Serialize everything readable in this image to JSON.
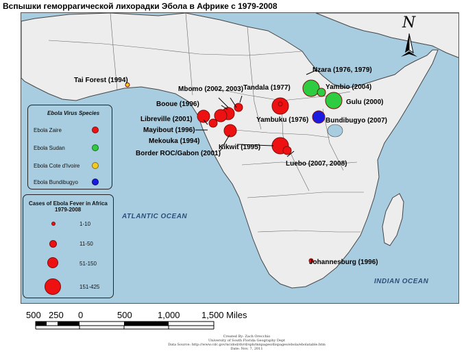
{
  "title": "Вспышки геморрагической лихорадки Эбола в Африке с 1979-2008",
  "colors": {
    "ocean": "#a9cde0",
    "land": "#ededed",
    "zaire": "#ee1111",
    "sudan": "#2ecc40",
    "cote_divoire": "#f2cc22",
    "bundibugyo": "#1a1ae0"
  },
  "oceans": {
    "atlantic": "ATLANTIC OCEAN",
    "indian": "INDIAN OCEAN"
  },
  "north_arrow": "N",
  "outbreaks": [
    {
      "label": "Tai Forest (1994)",
      "species": "cote_divoire",
      "cases": 1
    },
    {
      "label": "Mbomo (2002, 2003)",
      "species": "zaire",
      "cases": 35
    },
    {
      "label": "Booue (1996)",
      "species": "zaire",
      "cases": 60
    },
    {
      "label": "Libreville (2001)",
      "species": "zaire",
      "cases": 65
    },
    {
      "label": "Mayibout (1996)",
      "species": "zaire",
      "cases": 37
    },
    {
      "label": "Mekouka (1994)",
      "species": "zaire",
      "cases": 52
    },
    {
      "label": "Border ROC/Gabon (2001)",
      "species": "zaire",
      "cases": 59
    },
    {
      "label": "Tandala (1977)",
      "species": "zaire",
      "cases": 1
    },
    {
      "label": "Yambuku (1976)",
      "species": "zaire",
      "cases": 318
    },
    {
      "label": "Kikwit (1995)",
      "species": "zaire",
      "cases": 315
    },
    {
      "label": "Luebo (2007, 2008)",
      "species": "zaire",
      "cases": 32
    },
    {
      "label": "Nzara (1976, 1979)",
      "species": "sudan",
      "cases": 284
    },
    {
      "label": "Yambio (2004)",
      "species": "sudan",
      "cases": 17
    },
    {
      "label": "Gulu (2000)",
      "species": "sudan",
      "cases": 425
    },
    {
      "label": "Bundibugyo (2007)",
      "species": "bundibugyo",
      "cases": 131
    },
    {
      "label": "Johannesburg (1996)",
      "species": "zaire",
      "cases": 2
    }
  ],
  "species_legend": {
    "title": "Ebola Virus Species",
    "items": [
      {
        "label": "Ebola Zaire",
        "color": "#ee1111"
      },
      {
        "label": "Ebola Sudan",
        "color": "#2ecc40"
      },
      {
        "label": "Ebola Cote d'Ivoire",
        "color": "#f2cc22"
      },
      {
        "label": "Ebola Bundibugyo",
        "color": "#1a1ae0"
      }
    ]
  },
  "cases_legend": {
    "title": "Cases of Ebola Fever in Africa",
    "subtitle": "1979-2008",
    "classes": [
      "1-10",
      "11-50",
      "51-150",
      "151-425"
    ]
  },
  "scale_bar": {
    "labels": [
      "500",
      "250",
      "0",
      "500",
      "1,000",
      "1,500 Miles"
    ]
  },
  "credits": [
    "Created By: Zach Orecchio",
    "University of South Florida Geography Dept",
    "Data Source:  http://www.cdc.gov/ncidod/dvrd/spb/mnpages/dispages/ebola/ebolatable.htm",
    "Date:  Nov. 7, 2011"
  ]
}
